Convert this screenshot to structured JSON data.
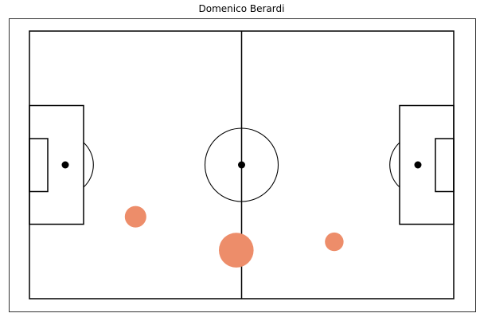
{
  "chart_data": {
    "type": "scatter",
    "title": "Domenico Berardi",
    "xlim": [
      0,
      120
    ],
    "ylim": [
      0,
      80
    ],
    "marker_color": "#ed8d6a",
    "line_color": "#000000",
    "points": [
      {
        "x": 30.0,
        "y": 24.5,
        "size": 1.0
      },
      {
        "x": 58.5,
        "y": 14.5,
        "size": 2.6
      },
      {
        "x": 86.2,
        "y": 17.0,
        "size": 0.75
      }
    ]
  }
}
